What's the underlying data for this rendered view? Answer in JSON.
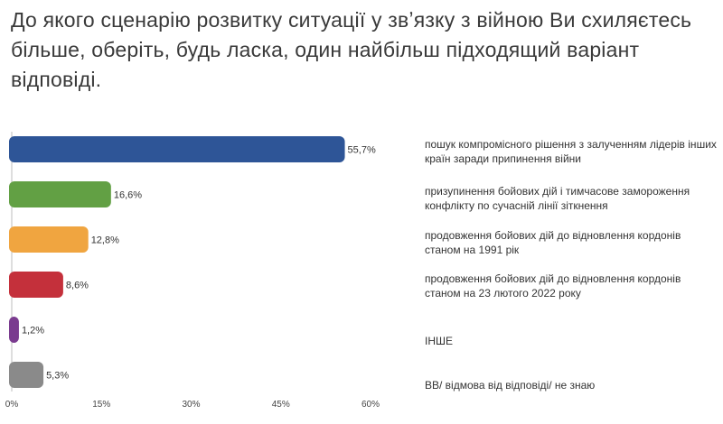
{
  "chart_data": {
    "type": "bar",
    "orientation": "horizontal",
    "title": "До якого сценарію розвитку ситуації у звʼязку з війною Ви схиляєтесь більше, оберіть, будь ласка, один найбільш підходящий варіант відповіді.",
    "categories": [
      "пошук компромісного рішення з залученням лідерів інших країн заради припинення війни",
      "призупинення бойових дій і тимчасове замороження конфлікту по сучасній лінії зіткнення",
      "продовження бойових дій до відновлення кордонів станом на 1991 рік",
      "продовження бойових дій до відновлення кордонів станом на 23 лютого 2022 року",
      "ІНШЕ",
      "ВВ/ відмова від відповіді/ не знаю"
    ],
    "values": [
      55.7,
      16.6,
      12.8,
      8.6,
      1.2,
      5.3
    ],
    "value_labels": [
      "55,7%",
      "16,6%",
      "12,8%",
      "8,6%",
      "1,2%",
      "5,3%"
    ],
    "colors": [
      "#2e5597",
      "#62a044",
      "#f0a540",
      "#c4303b",
      "#7a3b8f",
      "#8a8a8a"
    ],
    "xlim": [
      0,
      60
    ],
    "xticks": [
      0,
      15,
      30,
      45,
      60
    ],
    "xtick_labels": [
      "0%",
      "15%",
      "30%",
      "45%",
      "60%"
    ],
    "grid": false,
    "legend": "right"
  }
}
